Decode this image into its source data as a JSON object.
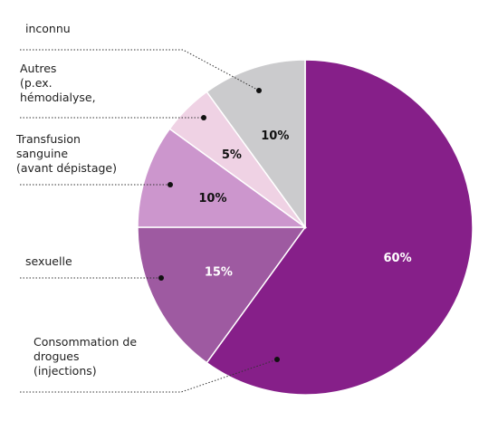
{
  "chart_data": {
    "type": "pie",
    "title": "",
    "slices": [
      {
        "label": "Consommation de drogues (injections)",
        "value": 60,
        "value_label": "60%",
        "color": "#861f89",
        "text_color": "#ffffff"
      },
      {
        "label": "sexuelle",
        "value": 15,
        "value_label": "15%",
        "color": "#9e5aa1",
        "text_color": "#ffffff"
      },
      {
        "label": "Transfusion sanguine (avant dépistage)",
        "value": 10,
        "value_label": "10%",
        "color": "#cc96cd",
        "text_color": "#111111"
      },
      {
        "label": "Autres (p.ex. hémodialyse,",
        "value": 5,
        "value_label": "5%",
        "color": "#efd2e4",
        "text_color": "#111111"
      },
      {
        "label": "inconnu",
        "value": 10,
        "value_label": "10%",
        "color": "#cbcbcd",
        "text_color": "#111111"
      }
    ]
  },
  "labels": {
    "inconnu": "inconnu",
    "autres": [
      "Autres",
      "(p.ex.",
      "hémodialyse,"
    ],
    "transfusion": [
      "Transfusion",
      "sanguine",
      "(avant dépistage)"
    ],
    "sexuelle": "sexuelle",
    "consommation": [
      "Consommation de",
      "drogues",
      "(injections)"
    ]
  }
}
